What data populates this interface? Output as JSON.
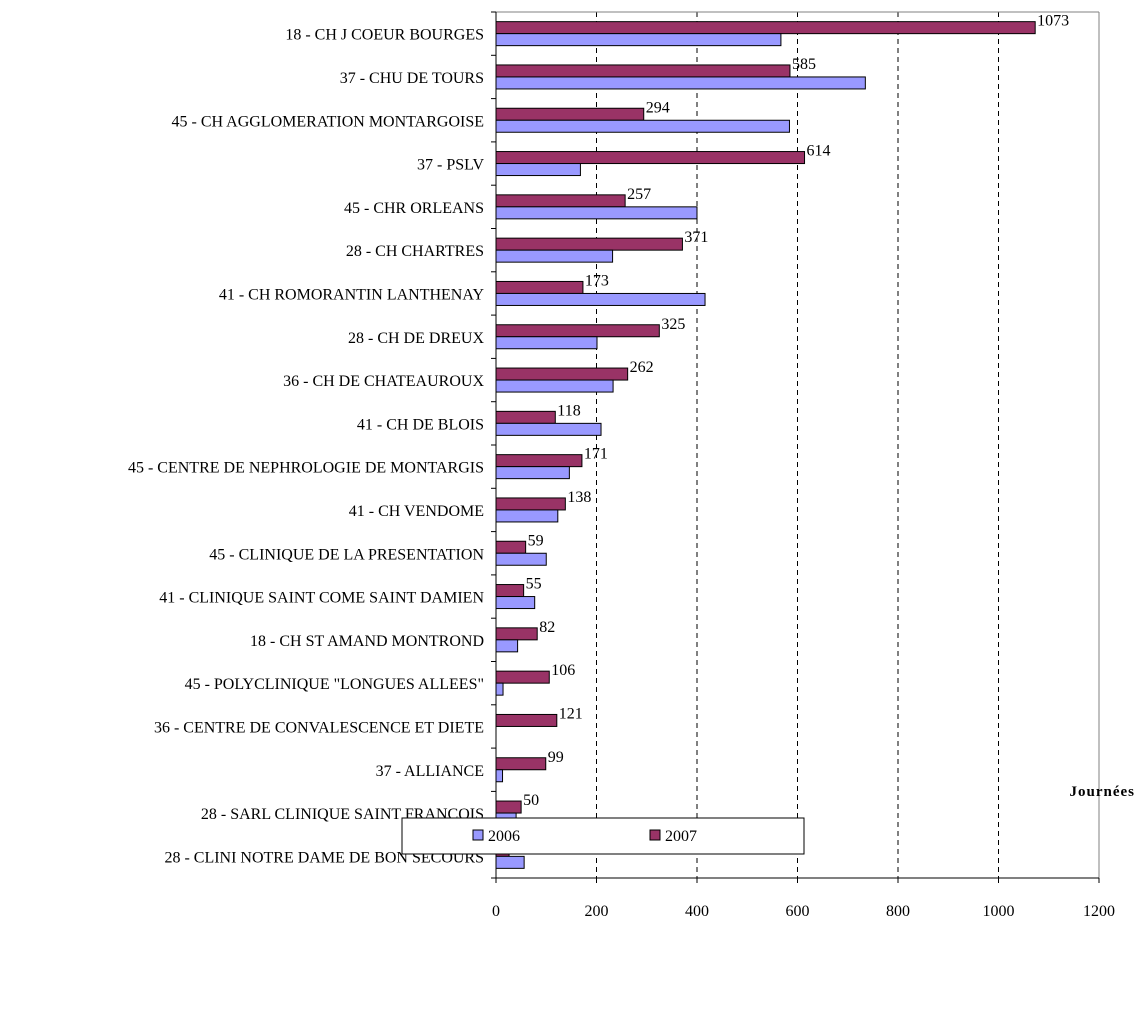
{
  "chart_data": {
    "type": "bar",
    "orientation": "horizontal",
    "categories": [
      "18 - CH J COEUR  BOURGES",
      "37 - CHU  DE TOURS",
      "45 - CH AGGLOMERATION MONTARGOISE",
      "37 - PSLV",
      "45 - CHR  ORLEANS",
      "28 - CH CHARTRES",
      "41 - CH ROMORANTIN LANTHENAY",
      "28 - CH DE DREUX",
      "36 - CH DE CHATEAUROUX",
      "41 - CH DE BLOIS",
      "45 - CENTRE DE NEPHROLOGIE DE MONTARGIS",
      "41 - CH VENDOME",
      "45 - CLINIQUE DE LA PRESENTATION",
      "41 - CLINIQUE SAINT COME SAINT DAMIEN",
      "18 - CH ST AMAND MONTROND",
      "45 - POLYCLINIQUE \"LONGUES ALLEES\"",
      "36 - CENTRE DE CONVALESCENCE ET DIETE",
      "37 - ALLIANCE",
      "28 - SARL CLINIQUE SAINT FRANCOIS",
      "28 - CLINI NOTRE DAME DE BON SECOURS"
    ],
    "series": [
      {
        "name": "2006",
        "color": "#9999ff",
        "values": [
          567,
          735,
          584,
          168,
          400,
          232,
          416,
          201,
          233,
          209,
          146,
          123,
          100,
          77,
          43,
          14,
          0,
          13,
          40,
          56
        ],
        "labels_shown": false
      },
      {
        "name": "2007",
        "color": "#993366",
        "values": [
          1073,
          585,
          294,
          614,
          257,
          371,
          173,
          325,
          262,
          118,
          171,
          138,
          59,
          55,
          82,
          106,
          121,
          99,
          50,
          26
        ],
        "labels_shown": true
      }
    ],
    "xlim": [
      0,
      1200
    ],
    "xticks": [
      0,
      200,
      400,
      600,
      800,
      1000,
      1200
    ],
    "xlabel": "Journées",
    "grid": "vertical dashed",
    "legend_position": "bottom"
  }
}
